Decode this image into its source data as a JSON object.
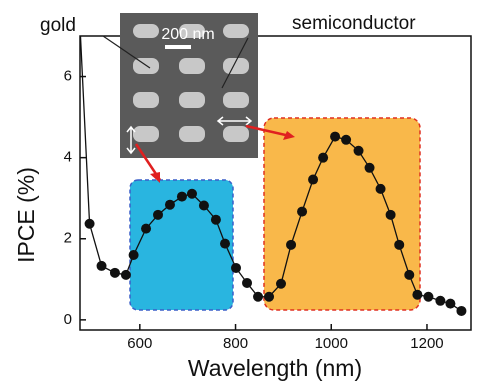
{
  "chart_data": {
    "type": "line",
    "xlabel": "Wavelength (nm)",
    "ylabel": "IPCE (%)",
    "annotations": [
      "gold",
      "semiconductor",
      "200 nm"
    ],
    "x": [
      476,
      495,
      520,
      548,
      571,
      587,
      613,
      638,
      663,
      688,
      709,
      734,
      759,
      778,
      801,
      824,
      847,
      870,
      895,
      916,
      939,
      962,
      983,
      1008,
      1031,
      1057,
      1080,
      1103,
      1124,
      1142,
      1163,
      1180,
      1203,
      1228,
      1249,
      1272
    ],
    "series": [
      {
        "color": "#111111",
        "values": [
          7,
          2.37,
          1.33,
          1.16,
          1.11,
          1.6,
          2.25,
          2.59,
          2.84,
          3.04,
          3.11,
          2.82,
          2.47,
          1.88,
          1.28,
          0.91,
          0.57,
          0.57,
          0.89,
          1.85,
          2.67,
          3.46,
          4.0,
          4.52,
          4.44,
          4.17,
          3.75,
          3.23,
          2.59,
          1.85,
          1.11,
          0.62,
          0.57,
          0.47,
          0.4,
          0.22
        ]
      }
    ],
    "xlim": [
      475,
      1292
    ],
    "ylim": [
      -0.25,
      7
    ],
    "xticks": [
      600,
      800,
      1000,
      1200
    ],
    "yticks": [
      0,
      2,
      4,
      6
    ]
  }
}
